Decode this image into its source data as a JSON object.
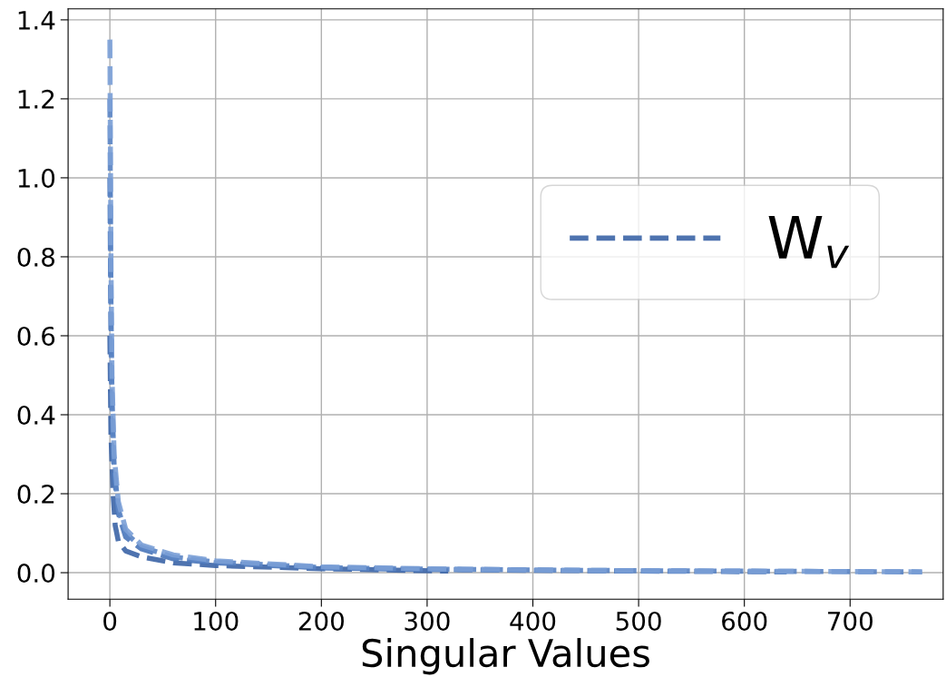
{
  "chart_data": {
    "type": "line",
    "xlabel": "Singular Values",
    "xlim": [
      -39.5,
      788
    ],
    "xticks": [
      0,
      100,
      200,
      300,
      400,
      500,
      600,
      700
    ],
    "ylim": [
      -0.067,
      1.428
    ],
    "yticks": [
      {
        "value": 0,
        "label": "0.0"
      },
      {
        "value": 0.2,
        "label": "0.2"
      },
      {
        "value": 0.4,
        "label": "0.4"
      },
      {
        "value": 0.6,
        "label": "0.6"
      },
      {
        "value": 0.8,
        "label": "0.8"
      },
      {
        "value": 1.0,
        "label": "1.0"
      },
      {
        "value": 1.2,
        "label": "1.2"
      },
      {
        "value": 1.4,
        "label": "1.4"
      }
    ],
    "grid": true,
    "legend": "top right",
    "line_style": "dashed",
    "marker": "none",
    "series": [
      {
        "name": "W$_{v}$",
        "color": "#3b64a6",
        "x": [
          0,
          1,
          3,
          5,
          8,
          15,
          30,
          60,
          100,
          200,
          320
        ],
        "values": [
          0.6,
          0.35,
          0.2,
          0.12,
          0.08,
          0.055,
          0.04,
          0.025,
          0.018,
          0.01,
          0.004
        ]
      },
      {
        "color": "#4a75b8",
        "x": [
          0,
          1,
          2,
          4,
          8,
          15,
          30,
          60,
          100,
          200,
          300,
          400,
          500,
          640
        ],
        "values": [
          1.0,
          0.6,
          0.4,
          0.25,
          0.15,
          0.09,
          0.06,
          0.035,
          0.025,
          0.012,
          0.008,
          0.006,
          0.004,
          0.002
        ]
      },
      {
        "color": "#5a84c4",
        "x": [
          0,
          1,
          2,
          4,
          8,
          15,
          30,
          60,
          100,
          200,
          300,
          500,
          768
        ],
        "values": [
          1.2,
          0.7,
          0.45,
          0.27,
          0.16,
          0.1,
          0.065,
          0.04,
          0.027,
          0.013,
          0.009,
          0.005,
          0.002
        ]
      },
      {
        "color": "#7a9fd6",
        "x": [
          0,
          1,
          2,
          4,
          8,
          15,
          30,
          60,
          100,
          200,
          300,
          400,
          500,
          600,
          768
        ],
        "values": [
          1.35,
          0.8,
          0.5,
          0.3,
          0.18,
          0.11,
          0.07,
          0.045,
          0.03,
          0.015,
          0.01,
          0.007,
          0.005,
          0.004,
          0.002
        ]
      }
    ]
  }
}
